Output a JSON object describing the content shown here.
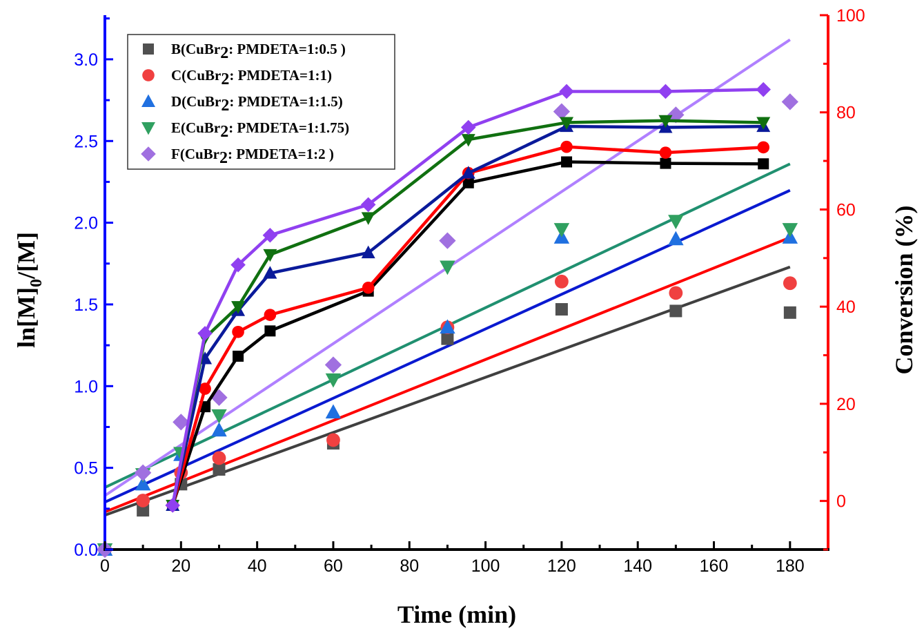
{
  "chart_data": {
    "type": "scatter",
    "xlabel": "Time  (min)",
    "ylabel_left_parts": [
      "ln[M]",
      "0",
      "/[M]"
    ],
    "ylabel_right": "Conversion  (%)",
    "xlim": [
      0,
      190
    ],
    "ylim_left": [
      0,
      3.27
    ],
    "ylim_right": [
      -10,
      100
    ],
    "x_ticks": [
      0,
      20,
      40,
      60,
      80,
      100,
      120,
      140,
      160,
      180
    ],
    "y_left_ticks": [
      "0.0",
      "0.5",
      "1.0",
      "1.5",
      "2.0",
      "2.5",
      "3.0"
    ],
    "y_right_ticks": [
      0,
      20,
      40,
      60,
      80,
      100
    ],
    "grid": false,
    "legend_placement": "top-left",
    "axis_colors": {
      "left": "#0000ff",
      "right": "#ff0000",
      "bottom": "#000000"
    },
    "ln_x": [
      0,
      10,
      20,
      30,
      60,
      90,
      120,
      150,
      180
    ],
    "conv_x": [
      17.8,
      26.3,
      35,
      43.4,
      69.2,
      95.5,
      121.3,
      147.3,
      173
    ],
    "series": [
      {
        "name": "B(CuBr2: PMDETA=1:0.5 )",
        "label_pre": "B(CuBr",
        "label_sub": "2",
        "label_post": ":  PMDETA=1:0.5 )",
        "marker": "square",
        "marker_color": "#505050",
        "conv_color": "#000000",
        "fit_color": "#404040",
        "ln_values": [
          0,
          0.24,
          0.4,
          0.49,
          0.65,
          1.29,
          1.47,
          1.46,
          1.45
        ],
        "conversion": [
          -0.9,
          19.4,
          29.8,
          35.0,
          43.2,
          65.5,
          69.8,
          69.5,
          69.4
        ],
        "fit": {
          "intercept": 0.21,
          "slope": 0.00844
        }
      },
      {
        "name": "C(CuBr2: PMDETA=1:1)",
        "label_pre": "C(CuBr",
        "label_sub": "2",
        "label_post": ":   PMDETA=1:1)",
        "marker": "circle",
        "marker_color": "#f04040",
        "conv_color": "#ff0000",
        "fit_color": "#ff0000",
        "ln_values": [
          0,
          0.3,
          0.47,
          0.56,
          0.67,
          1.36,
          1.64,
          1.57,
          1.63
        ],
        "conversion": [
          -0.9,
          23.1,
          34.8,
          38.3,
          43.9,
          67.5,
          72.9,
          71.7,
          72.8
        ],
        "fit": {
          "intercept": 0.23,
          "slope": 0.00933
        }
      },
      {
        "name": "D(CuBr2: PMDETA=1:1.5)",
        "label_pre": "D(CuBr",
        "label_sub": "2",
        "label_post": ":   PMDETA=1:1.5)",
        "marker": "triangle-up",
        "marker_color": "#2070e0",
        "conv_color": "#0a1a9a",
        "fit_color": "#0a1ad0",
        "ln_values": [
          0,
          0.4,
          0.58,
          0.73,
          0.84,
          1.36,
          1.91,
          1.9,
          1.91
        ],
        "conversion": [
          -0.9,
          29.3,
          39.2,
          46.9,
          51.1,
          67.5,
          77.1,
          76.9,
          77.1
        ],
        "fit": {
          "intercept": 0.29,
          "slope": 0.0106
        }
      },
      {
        "name": "E(CuBr2: PMDETA=1:1.75)",
        "label_pre": "E(CuBr",
        "label_sub": "2",
        "label_post": ":  PMDETA=1:1.75)",
        "marker": "triangle-down",
        "marker_color": "#30a060",
        "conv_color": "#107010",
        "fit_color": "#209070",
        "ln_values": [
          0,
          0.46,
          0.59,
          0.82,
          1.04,
          1.73,
          1.96,
          2.01,
          1.96
        ],
        "conversion": [
          -0.9,
          33.6,
          40.0,
          50.7,
          58.3,
          74.4,
          77.9,
          78.3,
          77.9
        ],
        "fit": {
          "intercept": 0.38,
          "slope": 0.011
        }
      },
      {
        "name": "F(CuBr2: PMDETA=1:2 )",
        "label_pre": "F(CuBr",
        "label_sub": "2",
        "label_post": ":  PMDETA=1:2 )",
        "marker": "diamond",
        "marker_color": "#a070e0",
        "conv_color": "#9040f0",
        "fit_color": "#b080ff",
        "ln_values": [
          0,
          0.47,
          0.78,
          0.93,
          1.13,
          1.89,
          2.68,
          2.66,
          2.74
        ],
        "conversion": [
          -0.9,
          34.5,
          48.6,
          54.7,
          61.0,
          76.9,
          84.3,
          84.3,
          84.7
        ],
        "fit": {
          "intercept": 0.33,
          "slope": 0.0155
        }
      }
    ]
  }
}
